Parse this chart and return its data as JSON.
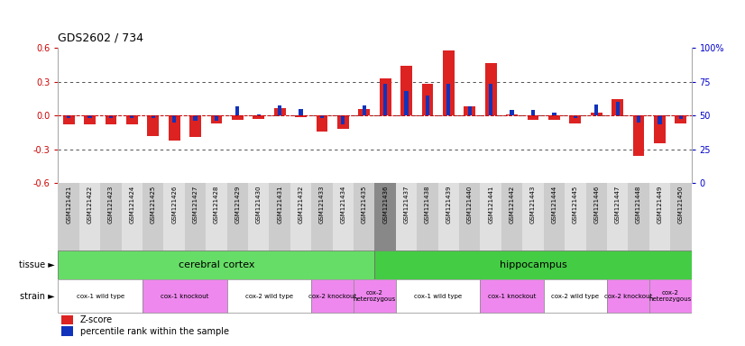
{
  "title": "GDS2602 / 734",
  "samples": [
    "GSM121421",
    "GSM121422",
    "GSM121423",
    "GSM121424",
    "GSM121425",
    "GSM121426",
    "GSM121427",
    "GSM121428",
    "GSM121429",
    "GSM121430",
    "GSM121431",
    "GSM121432",
    "GSM121433",
    "GSM121434",
    "GSM121435",
    "GSM121436",
    "GSM121437",
    "GSM121438",
    "GSM121439",
    "GSM121440",
    "GSM121441",
    "GSM121442",
    "GSM121443",
    "GSM121444",
    "GSM121445",
    "GSM121446",
    "GSM121447",
    "GSM121448",
    "GSM121449",
    "GSM121450"
  ],
  "zscore": [
    -0.08,
    -0.08,
    -0.08,
    -0.08,
    -0.18,
    -0.22,
    -0.19,
    -0.07,
    -0.04,
    -0.03,
    0.07,
    -0.01,
    -0.14,
    -0.12,
    0.06,
    0.33,
    0.44,
    0.28,
    0.58,
    0.08,
    0.47,
    0.01,
    -0.04,
    -0.04,
    -0.07,
    0.03,
    0.15,
    -0.36,
    -0.25,
    -0.07
  ],
  "percentile": [
    -0.02,
    -0.02,
    -0.02,
    -0.02,
    -0.02,
    -0.06,
    -0.05,
    -0.05,
    0.08,
    0.01,
    0.09,
    0.06,
    -0.02,
    -0.08,
    0.09,
    0.28,
    0.22,
    0.18,
    0.28,
    0.08,
    0.28,
    0.05,
    0.05,
    0.03,
    -0.02,
    0.1,
    0.12,
    -0.06,
    -0.08,
    -0.03
  ],
  "ylim": [
    -0.6,
    0.6
  ],
  "yticks_left": [
    -0.6,
    -0.3,
    0.0,
    0.3,
    0.6
  ],
  "yticks_right_labels": [
    "0",
    "25",
    "50",
    "75",
    "100%"
  ],
  "cerebral_range": [
    0,
    15
  ],
  "hippo_range": [
    15,
    30
  ],
  "tissue_color_cc": "#66dd66",
  "tissue_color_hc": "#44cc44",
  "strain_groups": [
    {
      "label": "cox-1 wild type",
      "range": [
        0,
        4
      ],
      "color": "#ffffff"
    },
    {
      "label": "cox-1 knockout",
      "range": [
        4,
        8
      ],
      "color": "#ee88ee"
    },
    {
      "label": "cox-2 wild type",
      "range": [
        8,
        12
      ],
      "color": "#ffffff"
    },
    {
      "label": "cox-2 knockout",
      "range": [
        12,
        14
      ],
      "color": "#ee88ee"
    },
    {
      "label": "cox-2\nheterozygous",
      "range": [
        14,
        16
      ],
      "color": "#ee88ee"
    },
    {
      "label": "cox-1 wild type",
      "range": [
        16,
        20
      ],
      "color": "#ffffff"
    },
    {
      "label": "cox-1 knockout",
      "range": [
        20,
        23
      ],
      "color": "#ee88ee"
    },
    {
      "label": "cox-2 wild type",
      "range": [
        23,
        26
      ],
      "color": "#ffffff"
    },
    {
      "label": "cox-2 knockout",
      "range": [
        26,
        28
      ],
      "color": "#ee88ee"
    },
    {
      "label": "cox-2\nheterozygous",
      "range": [
        28,
        30
      ],
      "color": "#ee88ee"
    }
  ],
  "bar_color_red": "#dd2222",
  "bar_color_blue": "#1133bb",
  "col_even": "#cccccc",
  "col_odd": "#e0e0e0",
  "col_gap": "#888888",
  "left_label_color": "#cc0000",
  "right_label_color": "#0000cc"
}
